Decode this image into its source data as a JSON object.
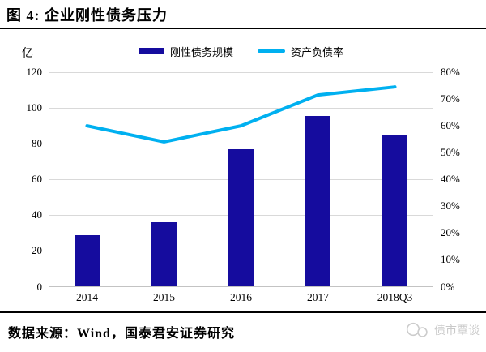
{
  "header": {
    "title": "图 4: 企业刚性债务压力"
  },
  "unit_label": "亿",
  "footer": {
    "source": "数据来源：Wind，国泰君安证券研究",
    "watermark": "债市覃谈"
  },
  "chart_data": {
    "type": "bar+line combo",
    "title": "企业刚性债务压力",
    "categories": [
      "2014",
      "2015",
      "2016",
      "2017",
      "2018Q3"
    ],
    "series": [
      {
        "name": "刚性债务规模",
        "type": "bar",
        "axis": "left",
        "unit": "亿",
        "color": "#150c9e",
        "values": [
          29,
          36,
          77,
          95.5,
          85
        ]
      },
      {
        "name": "资产负债率",
        "type": "line",
        "axis": "right",
        "unit": "%",
        "color": "#00b0f0",
        "values_pct": [
          60,
          54,
          60,
          71.5,
          74.5
        ]
      }
    ],
    "left_axis": {
      "label": "亿",
      "min": 0,
      "max": 120,
      "step": 20,
      "ticks": [
        "120",
        "100",
        "80",
        "60",
        "40",
        "20",
        "0"
      ]
    },
    "right_axis": {
      "label": "%",
      "min": 0,
      "max": 80,
      "step": 10,
      "ticks": [
        "80%",
        "70%",
        "60%",
        "50%",
        "40%",
        "30%",
        "20%",
        "10%",
        "0%"
      ]
    },
    "grid": true,
    "legend_position": "top"
  }
}
